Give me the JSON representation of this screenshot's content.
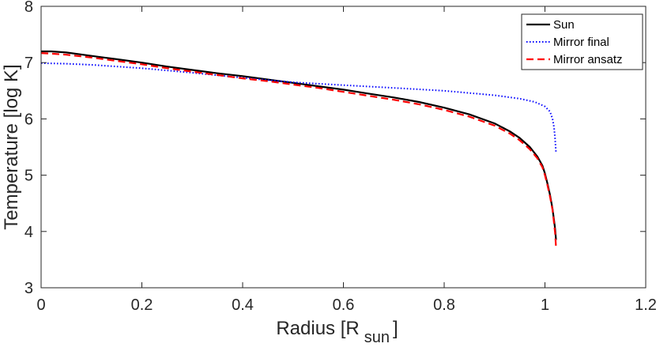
{
  "chart_data": {
    "type": "line",
    "xlabel": "Radius [R",
    "xlabel_sub": "sun",
    "xlabel_close": "]",
    "ylabel": "Temperature [log K]",
    "xlim": [
      0,
      1.2
    ],
    "ylim": [
      3,
      8
    ],
    "xticks": [
      0,
      0.2,
      0.4,
      0.6,
      0.8,
      1,
      1.2
    ],
    "xtick_labels": [
      "0",
      "0.2",
      "0.4",
      "0.6",
      "0.8",
      "1",
      "1.2"
    ],
    "yticks": [
      3,
      4,
      5,
      6,
      7,
      8
    ],
    "ytick_labels": [
      "3",
      "4",
      "5",
      "6",
      "7",
      "8"
    ],
    "grid": false,
    "legend_position": "top-right",
    "series": [
      {
        "name": "Sun",
        "color": "#000000",
        "style": "solid",
        "x": [
          0,
          0.02,
          0.05,
          0.1,
          0.15,
          0.2,
          0.25,
          0.3,
          0.35,
          0.4,
          0.45,
          0.5,
          0.55,
          0.6,
          0.65,
          0.7,
          0.75,
          0.8,
          0.85,
          0.9,
          0.93,
          0.95,
          0.97,
          0.985,
          0.995,
          1.0,
          1.005,
          1.01,
          1.015,
          1.018,
          1.02,
          1.021,
          1.022
        ],
        "y": [
          7.2,
          7.2,
          7.18,
          7.12,
          7.06,
          7.0,
          6.93,
          6.87,
          6.81,
          6.76,
          6.7,
          6.64,
          6.58,
          6.52,
          6.45,
          6.38,
          6.3,
          6.2,
          6.08,
          5.92,
          5.78,
          5.66,
          5.5,
          5.33,
          5.17,
          5.03,
          4.85,
          4.65,
          4.4,
          4.2,
          4.05,
          3.95,
          3.85
        ]
      },
      {
        "name": "Mirror final",
        "color": "#0000ff",
        "style": "dotted",
        "x": [
          0,
          0.05,
          0.1,
          0.2,
          0.3,
          0.4,
          0.5,
          0.6,
          0.7,
          0.8,
          0.9,
          0.95,
          0.98,
          1.0,
          1.01,
          1.015,
          1.018,
          1.02,
          1.022
        ],
        "y": [
          6.99,
          6.98,
          6.96,
          6.9,
          6.82,
          6.73,
          6.65,
          6.6,
          6.55,
          6.5,
          6.42,
          6.36,
          6.3,
          6.22,
          6.13,
          6.0,
          5.85,
          5.65,
          5.4
        ]
      },
      {
        "name": "Mirror ansatz",
        "color": "#ff0000",
        "style": "dashed",
        "x": [
          0,
          0.02,
          0.05,
          0.1,
          0.15,
          0.2,
          0.25,
          0.3,
          0.35,
          0.4,
          0.45,
          0.5,
          0.55,
          0.6,
          0.65,
          0.7,
          0.75,
          0.8,
          0.85,
          0.9,
          0.93,
          0.95,
          0.97,
          0.985,
          0.995,
          1.0,
          1.005,
          1.01,
          1.015,
          1.018,
          1.02,
          1.021,
          1.022
        ],
        "y": [
          7.17,
          7.16,
          7.14,
          7.09,
          7.03,
          6.97,
          6.9,
          6.84,
          6.78,
          6.72,
          6.67,
          6.61,
          6.55,
          6.48,
          6.41,
          6.34,
          6.26,
          6.16,
          6.04,
          5.88,
          5.74,
          5.62,
          5.46,
          5.3,
          5.14,
          5.0,
          4.82,
          4.62,
          4.38,
          4.15,
          3.98,
          3.85,
          3.72
        ]
      }
    ]
  }
}
